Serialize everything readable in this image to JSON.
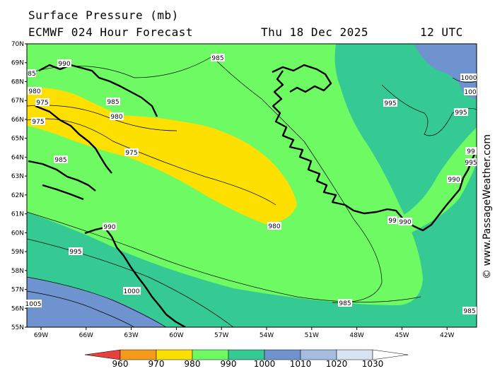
{
  "header": {
    "title": "Surface Pressure (mb)",
    "model": "ECMWF 024 Hour Forecast",
    "date": "Thu 18 Dec 2025",
    "time": "12 UTC"
  },
  "credit": "© www.PassageWeather.com",
  "lat_labels": [
    "70N",
    "69N",
    "68N",
    "67N",
    "66N",
    "65N",
    "64N",
    "63N",
    "62N",
    "61N",
    "60N",
    "59N",
    "58N",
    "57N",
    "56N",
    "55N"
  ],
  "lon_labels": [
    "69W",
    "66W",
    "63W",
    "60W",
    "57W",
    "54W",
    "51W",
    "48W",
    "45W",
    "42W"
  ],
  "contour_labels": {
    "c985_top": "985",
    "c985_left": "85",
    "c990_nw": "990",
    "c980_w1": "980",
    "c975_w1": "975",
    "c985_bay": "985",
    "c980_bay": "980",
    "c975_w2": "975",
    "c975_mid": "975",
    "c985_lab": "985",
    "c980_low": "980",
    "c990_lab": "990",
    "c995_w": "995",
    "c1000_w": "1000",
    "c1005_w": "1005",
    "c985_s": "985",
    "c995_e": "995",
    "c995_e2": "995",
    "c1000_e1": "1000",
    "c1000_e2": "100",
    "c995_ce": "99",
    "c995_se": "995",
    "c990_se": "990",
    "c990_tip": "990",
    "c990_tip2": "99",
    "c985_se": "985"
  },
  "colorbar": {
    "ticks": [
      "960",
      "970",
      "980",
      "990",
      "1000",
      "1010",
      "1020",
      "1030"
    ],
    "colors": [
      "#e8413c",
      "#f79a1c",
      "#fde000",
      "#6efa63",
      "#35c994",
      "#6e93cf",
      "#a5bde2",
      "#d8e4f4",
      "#ffffff"
    ]
  },
  "colors": {
    "band_970_980": "#fde000",
    "band_980_990": "#6efa63",
    "band_990_1000": "#35c994",
    "band_1000_1010": "#6e93cf",
    "coast": "#000000"
  }
}
